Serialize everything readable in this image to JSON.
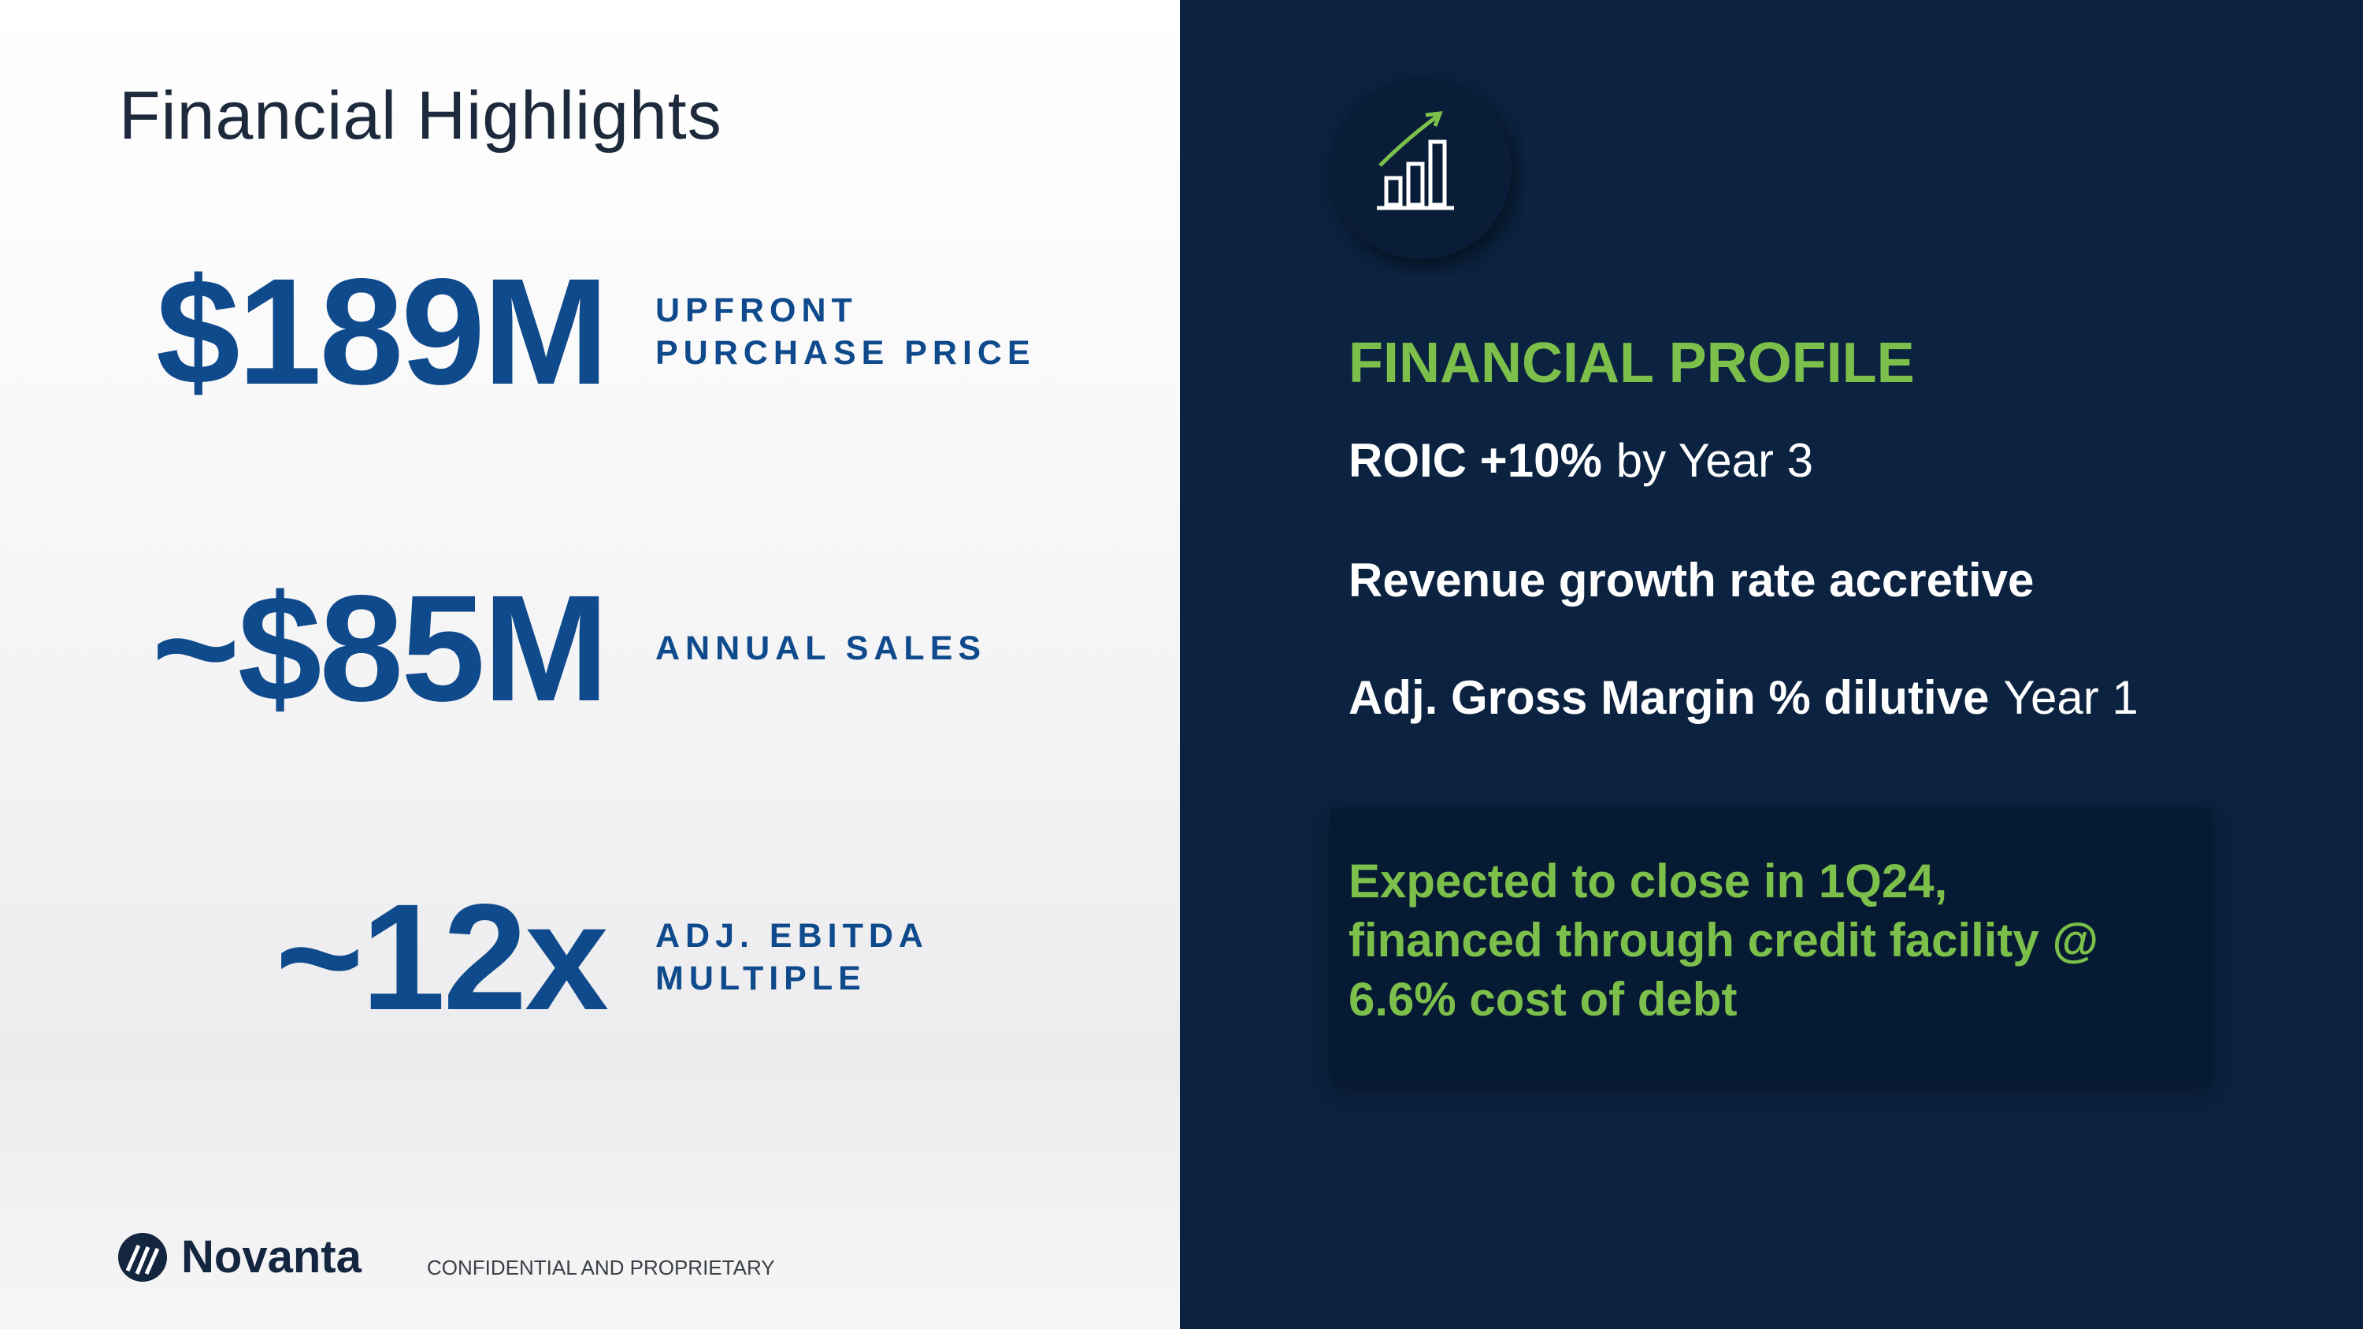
{
  "header": {
    "title": "Financial Highlights"
  },
  "metrics": [
    {
      "value": "$189M",
      "label": [
        "UPFRONT",
        "PURCHASE PRICE"
      ]
    },
    {
      "value": "~$85M",
      "label": [
        "ANNUAL SALES"
      ]
    },
    {
      "value": "~12x",
      "label": [
        "ADJ. EBITDA",
        "MULTIPLE"
      ]
    }
  ],
  "profile": {
    "heading": "FINANCIAL PROFILE",
    "items": [
      {
        "bold": "ROIC +10%",
        "regular": "by Year 3"
      },
      {
        "bold": "Revenue growth rate accretive"
      },
      {
        "bold": "Adj. Gross Margin % dilutive",
        "regular": "Year 1"
      }
    ],
    "note": [
      "Expected to close in 1Q24,",
      "financed through credit facility @",
      "6.6% cost of debt"
    ]
  },
  "footer": {
    "logo": "Novanta",
    "notice": "CONFIDENTIAL AND PROPRIETARY"
  }
}
